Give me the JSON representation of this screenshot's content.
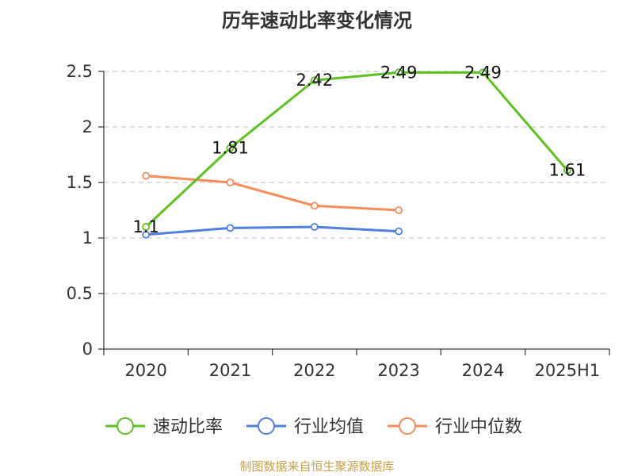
{
  "chart_data": {
    "type": "line",
    "title": "历年速动比率变化情况",
    "categories": [
      "2020",
      "2021",
      "2022",
      "2023",
      "2024",
      "2025H1"
    ],
    "ylim": [
      0,
      2.5
    ],
    "yticks": [
      "0",
      "0.5",
      "1",
      "1.5",
      "2",
      "2.5"
    ],
    "grid": true,
    "legend_position": "bottom",
    "series": [
      {
        "name": "速动比率",
        "color": "#5cc121",
        "values": [
          1.1,
          1.81,
          2.42,
          2.49,
          2.49,
          1.61
        ],
        "labels": [
          "1.1",
          "1.81",
          "2.42",
          "2.49",
          "2.49",
          "1.61"
        ]
      },
      {
        "name": "行业均值",
        "color": "#4f7fe0",
        "values": [
          1.03,
          1.09,
          1.1,
          1.06,
          null,
          null
        ]
      },
      {
        "name": "行业中位数",
        "color": "#f58c5a",
        "values": [
          1.56,
          1.5,
          1.29,
          1.25,
          null,
          null
        ]
      }
    ]
  },
  "source_text": "制图数据来自恒生聚源数据库"
}
